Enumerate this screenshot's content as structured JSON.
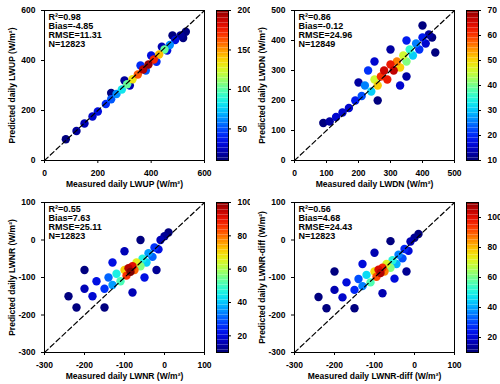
{
  "chart_data": [
    {
      "type": "scatter",
      "x_label": "Measured daily LWUP (W/m²)",
      "y_label": "Predicted daily LWUP (W/m²)",
      "xlim": [
        0,
        600
      ],
      "ylim": [
        0,
        600
      ],
      "xticks": [
        0,
        200,
        400,
        600
      ],
      "yticks": [
        0,
        200,
        400,
        600
      ],
      "annotations": [
        "R²=0.98",
        "Bias=-4.85",
        "RMSE=11.31",
        "N=12823"
      ],
      "colorbar_lim": [
        10,
        200
      ],
      "colorbar_ticks": [
        50,
        100,
        150,
        200
      ],
      "x": [
        80,
        530,
        520,
        480,
        250,
        120,
        510,
        300,
        150,
        320,
        440,
        180,
        200,
        460,
        400,
        490,
        230,
        420,
        360,
        250,
        380,
        270,
        470,
        290,
        310,
        450,
        330,
        430,
        350,
        410,
        370,
        390
      ],
      "y": [
        85,
        515,
        490,
        500,
        270,
        118,
        500,
        320,
        148,
        300,
        455,
        176,
        196,
        440,
        420,
        482,
        226,
        395,
        380,
        245,
        360,
        266,
        462,
        284,
        305,
        444,
        325,
        424,
        344,
        404,
        364,
        384
      ],
      "density": [
        10,
        10,
        10,
        10,
        10,
        15,
        15,
        15,
        20,
        20,
        20,
        25,
        30,
        30,
        30,
        30,
        40,
        40,
        40,
        50,
        50,
        60,
        60,
        80,
        100,
        100,
        130,
        140,
        160,
        170,
        190,
        195
      ]
    },
    {
      "type": "scatter",
      "x_label": "Measured daily LWDN (W/m²)",
      "y_label": "Predicted daily LWDN (W/m²)",
      "xlim": [
        0,
        500
      ],
      "ylim": [
        0,
        500
      ],
      "xticks": [
        0,
        100,
        200,
        300,
        400,
        500
      ],
      "yticks": [
        0,
        100,
        200,
        300,
        400,
        500
      ],
      "annotations": [
        "R²=0.86",
        "Bias=-0.12",
        "RMSE=24.96",
        "N=12849"
      ],
      "colorbar_lim": [
        10,
        70
      ],
      "colorbar_ticks": [
        10,
        20,
        30,
        40,
        50,
        60,
        70
      ],
      "x": [
        90,
        430,
        260,
        440,
        400,
        110,
        420,
        200,
        300,
        350,
        130,
        150,
        170,
        410,
        250,
        330,
        190,
        400,
        350,
        230,
        390,
        210,
        220,
        380,
        240,
        370,
        360,
        350,
        250,
        340,
        330,
        260,
        320,
        270,
        290,
        300,
        280,
        310
      ],
      "y": [
        125,
        410,
        200,
        360,
        450,
        130,
        420,
        260,
        370,
        280,
        145,
        160,
        175,
        390,
        330,
        250,
        200,
        410,
        400,
        300,
        370,
        215,
        250,
        390,
        230,
        350,
        370,
        330,
        270,
        350,
        310,
        250,
        330,
        280,
        270,
        320,
        300,
        300
      ],
      "density": [
        10,
        10,
        10,
        10,
        10,
        12,
        12,
        12,
        12,
        12,
        15,
        15,
        15,
        15,
        15,
        15,
        18,
        18,
        18,
        20,
        20,
        22,
        25,
        25,
        30,
        30,
        35,
        40,
        45,
        45,
        50,
        50,
        55,
        60,
        62,
        62,
        65,
        66
      ]
    },
    {
      "type": "scatter",
      "x_label": "Measured daily LWNR (W/m²)",
      "y_label": "Predicted daily LWNR (W/m²)",
      "xlim": [
        -300,
        100
      ],
      "ylim": [
        -300,
        100
      ],
      "xticks": [
        -300,
        -200,
        -100,
        0,
        100
      ],
      "yticks": [
        -300,
        -200,
        -100,
        0,
        100
      ],
      "annotations": [
        "R²=0.55",
        "Bias=7.63",
        "RMSE=25.11",
        "N=12823"
      ],
      "colorbar_lim": [
        10,
        100
      ],
      "colorbar_ticks": [
        20,
        40,
        60,
        80,
        100
      ],
      "x": [
        -240,
        -220,
        -150,
        -200,
        -60,
        10,
        0,
        -20,
        -200,
        -10,
        -80,
        -100,
        -180,
        -170,
        -15,
        -50,
        -130,
        -150,
        -25,
        -140,
        -30,
        -130,
        -40,
        -45,
        -120,
        -55,
        -110,
        -60,
        -70,
        -100,
        -75,
        -95,
        -80,
        -90,
        -85
      ],
      "y": [
        -150,
        -180,
        -180,
        -80,
        0,
        20,
        10,
        -80,
        -130,
        0,
        -140,
        -30,
        -150,
        -110,
        -25,
        -100,
        -60,
        -130,
        -20,
        -100,
        -45,
        -120,
        -35,
        -60,
        -90,
        -50,
        -110,
        -70,
        -60,
        -80,
        -80,
        -95,
        -70,
        -75,
        -85
      ],
      "density": [
        10,
        10,
        10,
        10,
        10,
        10,
        12,
        12,
        15,
        15,
        15,
        15,
        18,
        20,
        20,
        20,
        20,
        25,
        25,
        30,
        30,
        35,
        35,
        40,
        45,
        45,
        50,
        55,
        65,
        70,
        80,
        85,
        90,
        95,
        100
      ]
    },
    {
      "type": "scatter",
      "x_label": "Measured daily LWNR-diff (W/m²)",
      "y_label": "Predicted daily LWNR-diff (W/m²)",
      "xlim": [
        -300,
        100
      ],
      "ylim": [
        -300,
        100
      ],
      "xticks": [
        -300,
        -200,
        -100,
        0,
        100
      ],
      "yticks": [
        -300,
        -200,
        -100,
        0,
        100
      ],
      "annotations": [
        "R²=0.56",
        "Bias=4.68",
        "RMSE=24.43",
        "N=12823"
      ],
      "colorbar_lim": [
        10,
        110
      ],
      "colorbar_ticks": [
        20,
        40,
        60,
        80,
        100
      ],
      "x": [
        -240,
        -220,
        -150,
        -200,
        -60,
        10,
        0,
        -20,
        -200,
        -10,
        -80,
        -100,
        -180,
        -170,
        -15,
        -50,
        -130,
        -150,
        -25,
        -140,
        -30,
        -130,
        -40,
        -45,
        -120,
        -55,
        -110,
        -60,
        -70,
        -100,
        -75,
        -95,
        -80,
        -90,
        -85
      ],
      "y": [
        -152,
        -182,
        -182,
        -84,
        -3,
        16,
        6,
        -84,
        -133,
        -4,
        -142,
        -34,
        -153,
        -113,
        -29,
        -103,
        -64,
        -133,
        -24,
        -104,
        -49,
        -123,
        -39,
        -64,
        -93,
        -54,
        -113,
        -74,
        -64,
        -84,
        -84,
        -98,
        -74,
        -79,
        -88
      ],
      "density": [
        10,
        10,
        10,
        10,
        10,
        10,
        12,
        12,
        15,
        15,
        15,
        15,
        18,
        20,
        20,
        20,
        20,
        25,
        25,
        30,
        30,
        35,
        35,
        40,
        45,
        50,
        55,
        60,
        70,
        75,
        85,
        90,
        95,
        100,
        105
      ]
    }
  ]
}
